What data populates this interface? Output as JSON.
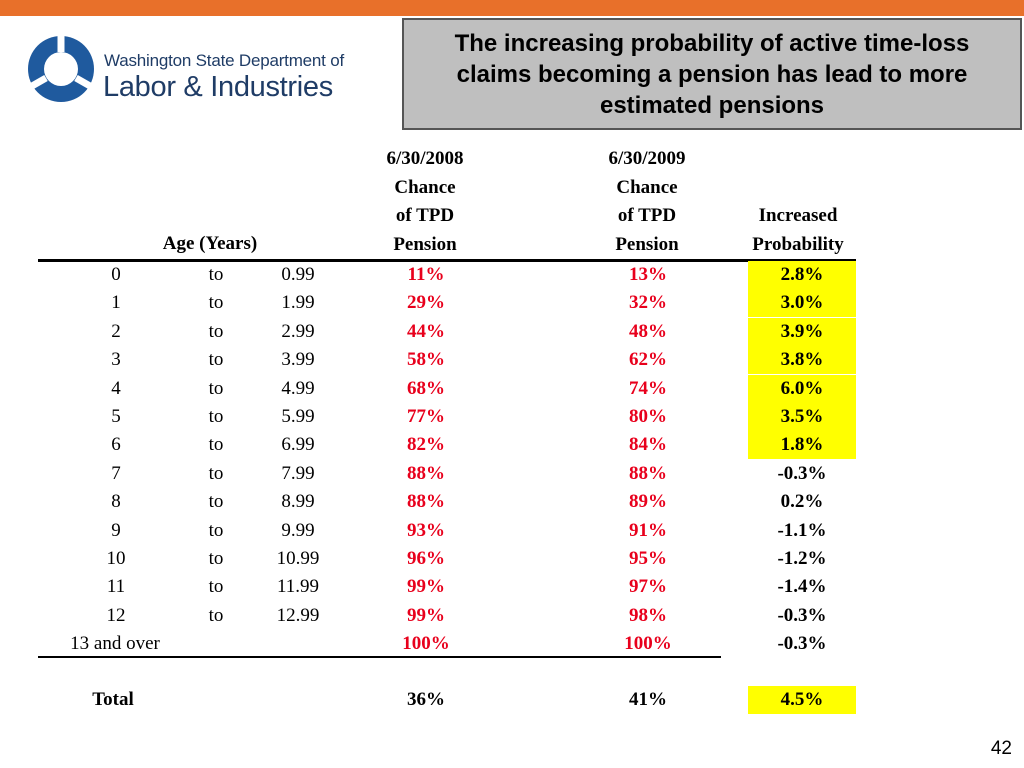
{
  "logo": {
    "line1": "Washington State Department of",
    "line2": "Labor & Industries",
    "colors": {
      "blue": "#1f5a9e",
      "dark": "#1f3c66"
    }
  },
  "title": "The increasing probability of active time-loss claims becoming a pension has lead to more estimated pensions",
  "headers": {
    "age": "Age (Years)",
    "col2008": [
      "6/30/2008",
      "Chance",
      "of TPD",
      "Pension"
    ],
    "col2009": [
      "6/30/2009",
      "Chance",
      "of TPD",
      "Pension"
    ],
    "increase": [
      "Increased",
      "Probability"
    ]
  },
  "rows": [
    {
      "from": "0",
      "to": "to",
      "upto": "0.99",
      "p2008": "11%",
      "p2009": "13%",
      "inc": "2.8%",
      "highlight": true
    },
    {
      "from": "1",
      "to": "to",
      "upto": "1.99",
      "p2008": "29%",
      "p2009": "32%",
      "inc": "3.0%",
      "highlight": true
    },
    {
      "from": "2",
      "to": "to",
      "upto": "2.99",
      "p2008": "44%",
      "p2009": "48%",
      "inc": "3.9%",
      "highlight": true
    },
    {
      "from": "3",
      "to": "to",
      "upto": "3.99",
      "p2008": "58%",
      "p2009": "62%",
      "inc": "3.8%",
      "highlight": true
    },
    {
      "from": "4",
      "to": "to",
      "upto": "4.99",
      "p2008": "68%",
      "p2009": "74%",
      "inc": "6.0%",
      "highlight": true
    },
    {
      "from": "5",
      "to": "to",
      "upto": "5.99",
      "p2008": "77%",
      "p2009": "80%",
      "inc": "3.5%",
      "highlight": true
    },
    {
      "from": "6",
      "to": "to",
      "upto": "6.99",
      "p2008": "82%",
      "p2009": "84%",
      "inc": "1.8%",
      "highlight": true
    },
    {
      "from": "7",
      "to": "to",
      "upto": "7.99",
      "p2008": "88%",
      "p2009": "88%",
      "inc": "-0.3%",
      "highlight": false
    },
    {
      "from": "8",
      "to": "to",
      "upto": "8.99",
      "p2008": "88%",
      "p2009": "89%",
      "inc": "0.2%",
      "highlight": false
    },
    {
      "from": "9",
      "to": "to",
      "upto": "9.99",
      "p2008": "93%",
      "p2009": "91%",
      "inc": "-1.1%",
      "highlight": false
    },
    {
      "from": "10",
      "to": "to",
      "upto": "10.99",
      "p2008": "96%",
      "p2009": "95%",
      "inc": "-1.2%",
      "highlight": false
    },
    {
      "from": "11",
      "to": "to",
      "upto": "11.99",
      "p2008": "99%",
      "p2009": "97%",
      "inc": "-1.4%",
      "highlight": false
    },
    {
      "from": "12",
      "to": "to",
      "upto": "12.99",
      "p2008": "99%",
      "p2009": "98%",
      "inc": "-0.3%",
      "highlight": false
    }
  ],
  "last_row": {
    "label": "13 and over",
    "p2008": "100%",
    "p2009": "100%",
    "inc": "-0.3%"
  },
  "total": {
    "label": "Total",
    "p2008": "36%",
    "p2009": "41%",
    "inc": "4.5%"
  },
  "page_number": "42",
  "colors": {
    "accent": "#e8702a",
    "highlight": "#ffff00",
    "red_values": "#e8001c",
    "title_box": "#bfbfbf"
  }
}
